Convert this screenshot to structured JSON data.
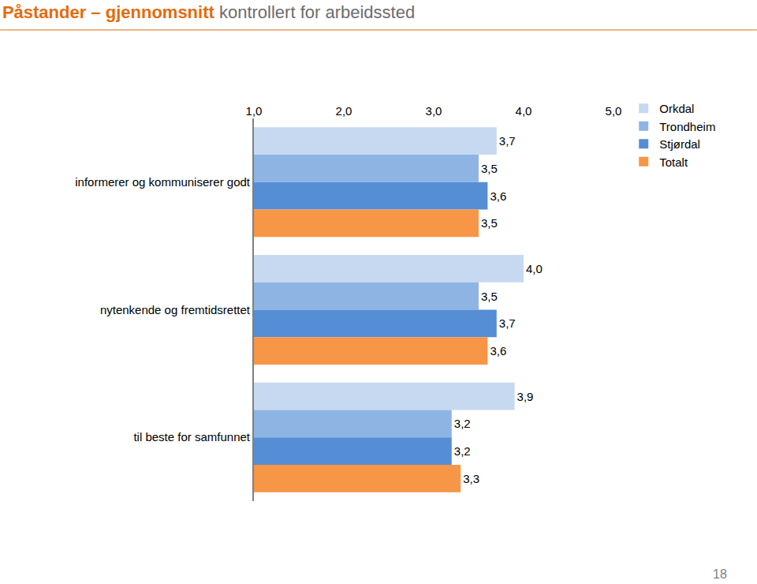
{
  "chart_data": {
    "type": "bar",
    "orientation": "horizontal",
    "title": "Påstander – gjennomsnitt",
    "subtitle": "kontrollert for arbeidssted",
    "categories": [
      "informerer og kommuniserer godt",
      "nytenkende og fremtidsrettet",
      "til beste for samfunnet"
    ],
    "series": [
      {
        "name": "Orkdal",
        "color": "#c6d9f1",
        "values": [
          3.7,
          4.0,
          3.9
        ],
        "value_labels": [
          "3,7",
          "4,0",
          "3,9"
        ]
      },
      {
        "name": "Trondheim",
        "color": "#8eb4e3",
        "values": [
          3.5,
          3.5,
          3.2
        ],
        "value_labels": [
          "3,5",
          "3,5",
          "3,2"
        ]
      },
      {
        "name": "Stjørdal",
        "color": "#558ed5",
        "values": [
          3.6,
          3.7,
          3.2
        ],
        "value_labels": [
          "3,6",
          "3,7",
          "3,2"
        ]
      },
      {
        "name": "Totalt",
        "color": "#f79646",
        "values": [
          3.5,
          3.6,
          3.3
        ],
        "value_labels": [
          "3,5",
          "3,6",
          "3,3"
        ]
      }
    ],
    "xlim": [
      1,
      5
    ],
    "xticks": [
      {
        "value": 1,
        "label": "1,0"
      },
      {
        "value": 2,
        "label": "2,0"
      },
      {
        "value": 3,
        "label": "3,0"
      },
      {
        "value": 4,
        "label": "4,0"
      },
      {
        "value": 5,
        "label": "5,0"
      }
    ],
    "grid": false,
    "data_labels": true,
    "legend": "right",
    "annotations": [
      {
        "text": "18"
      }
    ]
  }
}
